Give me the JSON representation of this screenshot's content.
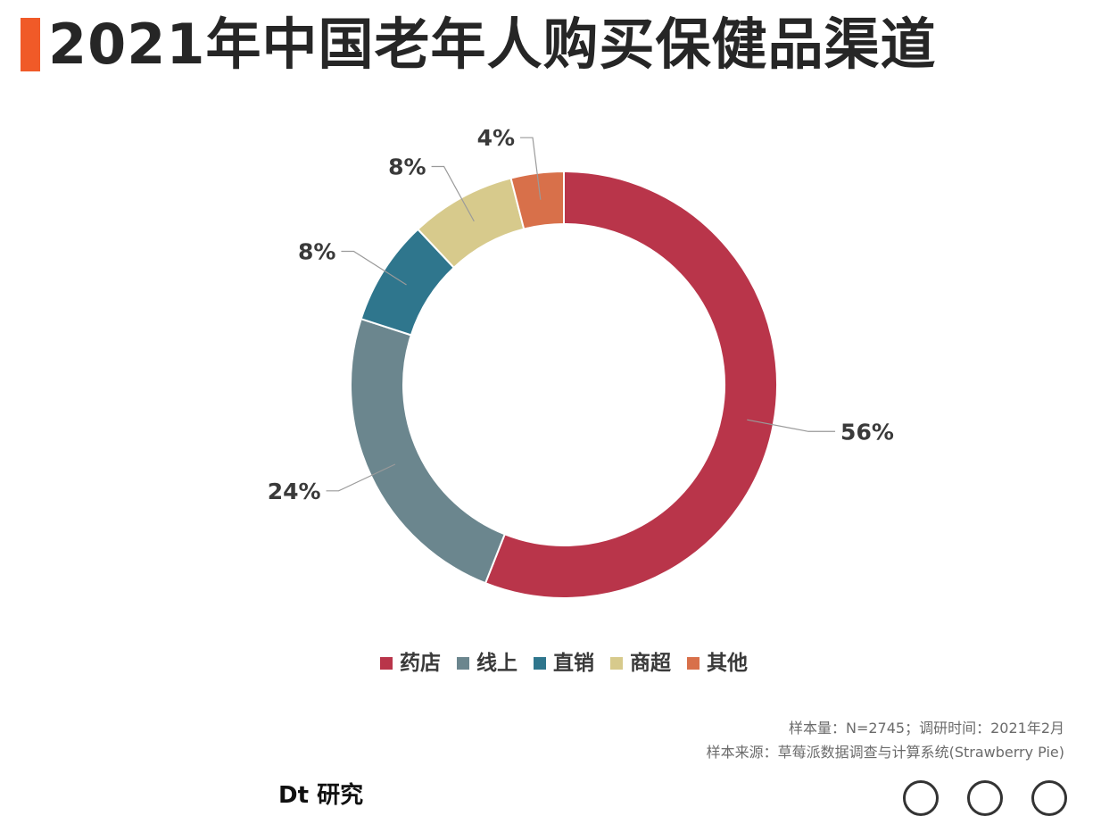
{
  "title": "2021年中国老年人购买保健品渠道",
  "colors": {
    "accent": "#f05a28",
    "text": "#262626"
  },
  "chart_data": {
    "type": "pie",
    "style": "donut",
    "start": "top, clockwise",
    "categories": [
      "药店",
      "线上",
      "直销",
      "商超",
      "其他"
    ],
    "values": [
      56,
      24,
      8,
      8,
      4
    ],
    "data_labels": [
      "56%",
      "24%",
      "8%",
      "8%",
      "4%"
    ],
    "colors": [
      "#b9354a",
      "#6b868e",
      "#2f768d",
      "#d7ca8c",
      "#d8704a"
    ],
    "legend_position": "bottom"
  },
  "notes": {
    "sample": "样本量：N=2745；调研时间：2021年2月",
    "source": "样本来源：草莓派数据调查与计算系统(Strawberry Pie)"
  },
  "footer": {
    "logo_text": "Dt 研究",
    "icons": [
      "circle-icon",
      "info-icon",
      "circle-icon"
    ]
  }
}
